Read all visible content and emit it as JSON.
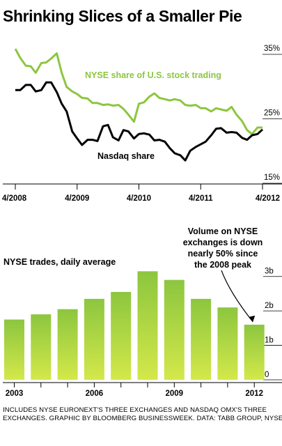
{
  "header": {
    "title": "Shrinking Slices of a Smaller Pie"
  },
  "footnote": {
    "line1": "INCLUDES NYSE EURONEXT'S THREE EXCHANGES AND NASDAQ OMX'S THREE",
    "line2": "EXCHANGES. GRAPHIC BY BLOOMBERG BUSINESSWEEK. DATA: TABB GROUP, NYSE"
  },
  "colors": {
    "nyse": "#8cc63f",
    "nasdaq": "#000000",
    "bar_top": "#8cc63f",
    "bar_bottom": "#d4e84a"
  },
  "chart_data": [
    {
      "type": "line",
      "title": "",
      "xlabel": "",
      "ylabel": "",
      "x_ticks": [
        "4/2008",
        "4/2009",
        "4/2010",
        "4/2011",
        "4/2012"
      ],
      "y_ticks": [
        "15%",
        "25%",
        "35%"
      ],
      "ylim": [
        15,
        35
      ],
      "xlim": [
        2008.25,
        2012.25
      ],
      "grid": false,
      "series": [
        {
          "name": "NYSE share of U.S. stock trading",
          "x": [
            2008.25,
            2008.33,
            2008.42,
            2008.5,
            2008.58,
            2008.67,
            2008.75,
            2008.83,
            2008.92,
            2009.0,
            2009.08,
            2009.17,
            2009.25,
            2009.33,
            2009.42,
            2009.5,
            2009.58,
            2009.67,
            2009.75,
            2009.83,
            2009.92,
            2010.0,
            2010.08,
            2010.17,
            2010.25,
            2010.33,
            2010.42,
            2010.5,
            2010.58,
            2010.67,
            2010.75,
            2010.83,
            2010.92,
            2011.0,
            2011.08,
            2011.17,
            2011.25,
            2011.33,
            2011.42,
            2011.5,
            2011.58,
            2011.67,
            2011.75,
            2011.83,
            2011.92,
            2012.0,
            2012.08,
            2012.17,
            2012.25
          ],
          "y": [
            35.2,
            33.8,
            32.6,
            32.5,
            31.5,
            33.0,
            33.1,
            33.7,
            34.5,
            31.5,
            29.3,
            28.6,
            28.2,
            27.6,
            27.5,
            26.8,
            26.8,
            26.5,
            26.6,
            26.4,
            26.5,
            25.9,
            25.0,
            23.9,
            26.7,
            26.9,
            27.8,
            28.3,
            27.6,
            27.4,
            27.2,
            27.4,
            27.2,
            26.5,
            26.4,
            26.5,
            26.0,
            26.0,
            25.5,
            26.0,
            25.8,
            25.6,
            26.2,
            25.0,
            24.0,
            22.6,
            22.0,
            23.0,
            23.0
          ]
        },
        {
          "name": "Nasdaq share",
          "x": [
            2008.25,
            2008.33,
            2008.42,
            2008.5,
            2008.58,
            2008.67,
            2008.75,
            2008.83,
            2008.92,
            2009.0,
            2009.08,
            2009.17,
            2009.25,
            2009.33,
            2009.42,
            2009.5,
            2009.58,
            2009.67,
            2009.75,
            2009.83,
            2009.92,
            2010.0,
            2010.08,
            2010.17,
            2010.25,
            2010.33,
            2010.42,
            2010.5,
            2010.58,
            2010.67,
            2010.75,
            2010.83,
            2010.92,
            2011.0,
            2011.08,
            2011.17,
            2011.25,
            2011.33,
            2011.42,
            2011.5,
            2011.58,
            2011.67,
            2011.75,
            2011.83,
            2011.92,
            2012.0,
            2012.08,
            2012.17,
            2012.25
          ],
          "y": [
            28.8,
            28.8,
            29.6,
            29.6,
            28.6,
            28.8,
            30.0,
            30.0,
            28.5,
            26.7,
            25.5,
            22.4,
            21.3,
            20.3,
            21.1,
            21.1,
            20.9,
            23.2,
            23.4,
            21.5,
            21.0,
            22.6,
            22.4,
            21.3,
            22.0,
            22.1,
            21.9,
            21.0,
            21.1,
            20.8,
            19.8,
            19.0,
            18.7,
            17.9,
            19.4,
            20.0,
            20.4,
            20.8,
            21.8,
            22.8,
            22.9,
            22.2,
            22.3,
            22.2,
            21.4,
            21.1,
            21.8,
            22.0,
            22.7
          ]
        }
      ]
    },
    {
      "type": "bar",
      "title": "NYSE trades, daily average",
      "xlabel": "",
      "ylabel": "",
      "categories": [
        "2003",
        "2004",
        "2005",
        "2006",
        "2007",
        "2008",
        "2009",
        "2010",
        "2011",
        "2012"
      ],
      "x_tick_labels": [
        "2003",
        "2006",
        "2009",
        "2012"
      ],
      "y_ticks": [
        "0",
        "1b",
        "2b",
        "3b"
      ],
      "ylim": [
        0,
        3.5
      ],
      "grid": false,
      "series": [
        {
          "values": [
            1.75,
            1.9,
            2.05,
            2.35,
            2.55,
            3.15,
            2.9,
            2.35,
            2.1,
            1.6
          ]
        }
      ],
      "annotation": {
        "lines": [
          "Volume on NYSE",
          "exchanges is down",
          "nearly 50% since",
          "the 2008 peak"
        ]
      }
    }
  ]
}
